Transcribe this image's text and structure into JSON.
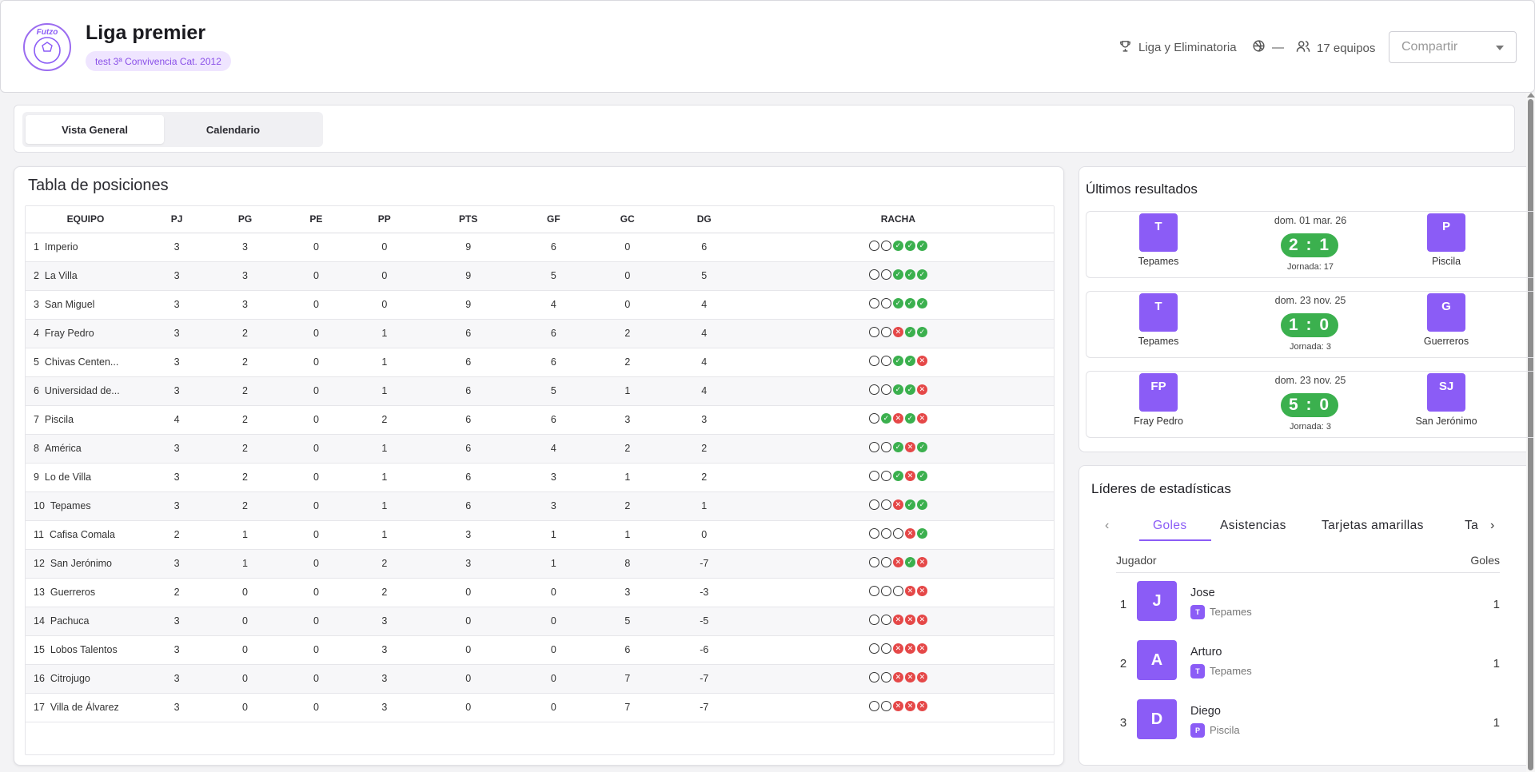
{
  "header": {
    "title": "Liga premier",
    "subtitle": "test 3ª Convivencia Cat. 2012",
    "logo_text": "Futzo",
    "format": "Liga y Eliminatoria",
    "sport": "—",
    "teams_count": "17 equipos",
    "share_placeholder": "Compartir"
  },
  "tabs": [
    {
      "label": "Vista General",
      "active": true
    },
    {
      "label": "Calendario",
      "active": false
    }
  ],
  "standings": {
    "title": "Tabla de posiciones",
    "columns": [
      "EQUIPO",
      "PJ",
      "PG",
      "PE",
      "PP",
      "PTS",
      "GF",
      "GC",
      "DG",
      "RACHA"
    ],
    "rows": [
      {
        "pos": "1",
        "team": "Imperio",
        "pj": "3",
        "pg": "3",
        "pe": "0",
        "pp": "0",
        "pts": "9",
        "gf": "6",
        "gc": "0",
        "dg": "6",
        "streak": [
          "E",
          "E",
          "W",
          "W",
          "W"
        ]
      },
      {
        "pos": "2",
        "team": "La Villa",
        "pj": "3",
        "pg": "3",
        "pe": "0",
        "pp": "0",
        "pts": "9",
        "gf": "5",
        "gc": "0",
        "dg": "5",
        "streak": [
          "E",
          "E",
          "W",
          "W",
          "W"
        ]
      },
      {
        "pos": "3",
        "team": "San Miguel",
        "pj": "3",
        "pg": "3",
        "pe": "0",
        "pp": "0",
        "pts": "9",
        "gf": "4",
        "gc": "0",
        "dg": "4",
        "streak": [
          "E",
          "E",
          "W",
          "W",
          "W"
        ]
      },
      {
        "pos": "4",
        "team": "Fray Pedro",
        "pj": "3",
        "pg": "2",
        "pe": "0",
        "pp": "1",
        "pts": "6",
        "gf": "6",
        "gc": "2",
        "dg": "4",
        "streak": [
          "E",
          "E",
          "L",
          "W",
          "W"
        ]
      },
      {
        "pos": "5",
        "team": "Chivas Centen...",
        "pj": "3",
        "pg": "2",
        "pe": "0",
        "pp": "1",
        "pts": "6",
        "gf": "6",
        "gc": "2",
        "dg": "4",
        "streak": [
          "E",
          "E",
          "W",
          "W",
          "L"
        ]
      },
      {
        "pos": "6",
        "team": "Universidad de...",
        "pj": "3",
        "pg": "2",
        "pe": "0",
        "pp": "1",
        "pts": "6",
        "gf": "5",
        "gc": "1",
        "dg": "4",
        "streak": [
          "E",
          "E",
          "W",
          "W",
          "L"
        ]
      },
      {
        "pos": "7",
        "team": "Piscila",
        "pj": "4",
        "pg": "2",
        "pe": "0",
        "pp": "2",
        "pts": "6",
        "gf": "6",
        "gc": "3",
        "dg": "3",
        "streak": [
          "E",
          "W",
          "L",
          "W",
          "L"
        ]
      },
      {
        "pos": "8",
        "team": "América",
        "pj": "3",
        "pg": "2",
        "pe": "0",
        "pp": "1",
        "pts": "6",
        "gf": "4",
        "gc": "2",
        "dg": "2",
        "streak": [
          "E",
          "E",
          "W",
          "L",
          "W"
        ]
      },
      {
        "pos": "9",
        "team": "Lo de Villa",
        "pj": "3",
        "pg": "2",
        "pe": "0",
        "pp": "1",
        "pts": "6",
        "gf": "3",
        "gc": "1",
        "dg": "2",
        "streak": [
          "E",
          "E",
          "W",
          "L",
          "W"
        ]
      },
      {
        "pos": "10",
        "team": "Tepames",
        "pj": "3",
        "pg": "2",
        "pe": "0",
        "pp": "1",
        "pts": "6",
        "gf": "3",
        "gc": "2",
        "dg": "1",
        "streak": [
          "E",
          "E",
          "L",
          "W",
          "W"
        ]
      },
      {
        "pos": "11",
        "team": "Cafisa Comala",
        "pj": "2",
        "pg": "1",
        "pe": "0",
        "pp": "1",
        "pts": "3",
        "gf": "1",
        "gc": "1",
        "dg": "0",
        "streak": [
          "E",
          "E",
          "E",
          "L",
          "W"
        ]
      },
      {
        "pos": "12",
        "team": "San Jerónimo",
        "pj": "3",
        "pg": "1",
        "pe": "0",
        "pp": "2",
        "pts": "3",
        "gf": "1",
        "gc": "8",
        "dg": "-7",
        "streak": [
          "E",
          "E",
          "L",
          "W",
          "L"
        ]
      },
      {
        "pos": "13",
        "team": "Guerreros",
        "pj": "2",
        "pg": "0",
        "pe": "0",
        "pp": "2",
        "pts": "0",
        "gf": "0",
        "gc": "3",
        "dg": "-3",
        "streak": [
          "E",
          "E",
          "E",
          "L",
          "L"
        ]
      },
      {
        "pos": "14",
        "team": "Pachuca",
        "pj": "3",
        "pg": "0",
        "pe": "0",
        "pp": "3",
        "pts": "0",
        "gf": "0",
        "gc": "5",
        "dg": "-5",
        "streak": [
          "E",
          "E",
          "L",
          "L",
          "L"
        ]
      },
      {
        "pos": "15",
        "team": "Lobos Talentos",
        "pj": "3",
        "pg": "0",
        "pe": "0",
        "pp": "3",
        "pts": "0",
        "gf": "0",
        "gc": "6",
        "dg": "-6",
        "streak": [
          "E",
          "E",
          "L",
          "L",
          "L"
        ]
      },
      {
        "pos": "16",
        "team": "Citrojugo",
        "pj": "3",
        "pg": "0",
        "pe": "0",
        "pp": "3",
        "pts": "0",
        "gf": "0",
        "gc": "7",
        "dg": "-7",
        "streak": [
          "E",
          "E",
          "L",
          "L",
          "L"
        ]
      },
      {
        "pos": "17",
        "team": "Villa de Álvarez",
        "pj": "3",
        "pg": "0",
        "pe": "0",
        "pp": "3",
        "pts": "0",
        "gf": "0",
        "gc": "7",
        "dg": "-7",
        "streak": [
          "E",
          "E",
          "L",
          "L",
          "L"
        ]
      }
    ]
  },
  "results": {
    "title": "Últimos resultados",
    "matches": [
      {
        "home_badge": "T",
        "home": "Tepames",
        "away_badge": "P",
        "away": "Piscila",
        "date": "dom. 01 mar. 26",
        "score": "2 : 1",
        "jornada": "Jornada: 17"
      },
      {
        "home_badge": "T",
        "home": "Tepames",
        "away_badge": "G",
        "away": "Guerreros",
        "date": "dom. 23 nov. 25",
        "score": "1 : 0",
        "jornada": "Jornada: 3"
      },
      {
        "home_badge": "FP",
        "home": "Fray Pedro",
        "away_badge": "SJ",
        "away": "San Jerónimo",
        "date": "dom. 23 nov. 25",
        "score": "5 : 0",
        "jornada": "Jornada: 3"
      }
    ]
  },
  "leaders": {
    "title": "Líderes de estadísticas",
    "tabs": [
      "Goles",
      "Asistencias",
      "Tarjetas amarillas",
      "Ta"
    ],
    "col_player": "Jugador",
    "col_stat": "Goles",
    "rows": [
      {
        "rank": "1",
        "initial": "J",
        "name": "Jose",
        "team_badge": "T",
        "team": "Tepames",
        "value": "1"
      },
      {
        "rank": "2",
        "initial": "A",
        "name": "Arturo",
        "team_badge": "T",
        "team": "Tepames",
        "value": "1"
      },
      {
        "rank": "3",
        "initial": "D",
        "name": "Diego",
        "team_badge": "P",
        "team": "Piscila",
        "value": "1"
      }
    ]
  },
  "colors": {
    "accent": "#8b5cf6",
    "win": "#3bb04e",
    "loss": "#e54848"
  }
}
